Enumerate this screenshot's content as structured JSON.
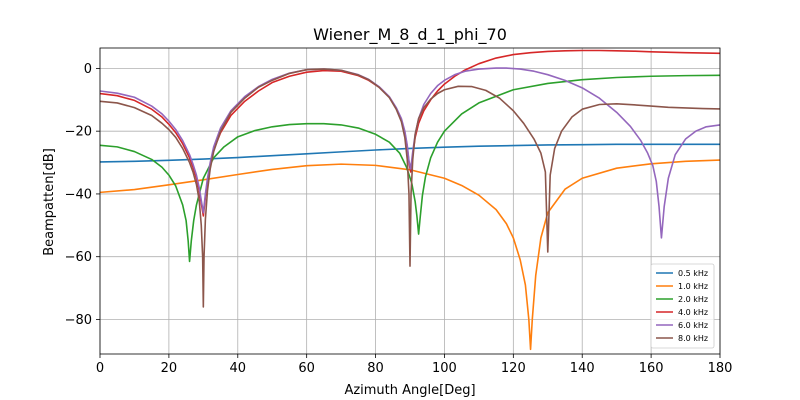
{
  "chart_data": {
    "type": "line",
    "title": "Wiener_M_8_d_1_phi_70",
    "xlabel": "Azimuth Angle[Deg]",
    "ylabel": "Beampatten[dB]",
    "xlim": [
      0,
      180
    ],
    "ylim": [
      -91,
      6.5
    ],
    "xticks": [
      0,
      20,
      40,
      60,
      80,
      100,
      120,
      140,
      160,
      180
    ],
    "yticks": [
      0,
      -20,
      -40,
      -60,
      -80
    ],
    "grid": true,
    "legend_position": "lower-right",
    "series": [
      {
        "name": "0.5 kHz",
        "color": "#1f77b4",
        "x": [
          0,
          10,
          20,
          30,
          40,
          50,
          60,
          70,
          80,
          90,
          100,
          110,
          120,
          130,
          140,
          150,
          160,
          170,
          180
        ],
        "y": [
          -29.8,
          -29.6,
          -29.3,
          -28.9,
          -28.4,
          -27.8,
          -27.2,
          -26.6,
          -26.0,
          -25.5,
          -25.1,
          -24.8,
          -24.6,
          -24.4,
          -24.3,
          -24.2,
          -24.2,
          -24.2,
          -24.2
        ]
      },
      {
        "name": "1.0 kHz",
        "color": "#ff7f0e",
        "x": [
          0,
          10,
          20,
          30,
          40,
          50,
          60,
          70,
          80,
          90,
          100,
          105,
          110,
          115,
          118,
          120,
          122,
          123.5,
          124.5,
          125,
          125.5,
          126.5,
          128,
          130,
          135,
          140,
          150,
          160,
          170,
          180
        ],
        "y": [
          -39.5,
          -38.6,
          -37.1,
          -35.5,
          -33.8,
          -32.2,
          -31.0,
          -30.5,
          -30.9,
          -32.3,
          -35.0,
          -37.3,
          -40.4,
          -45.0,
          -49.5,
          -54.0,
          -61.0,
          -69.0,
          -80.0,
          -89.5,
          -80.0,
          -66.0,
          -54.0,
          -46.0,
          -38.5,
          -35.0,
          -31.8,
          -30.4,
          -29.6,
          -29.2
        ]
      },
      {
        "name": "2.0 kHz",
        "color": "#2ca02c",
        "x": [
          0,
          5,
          10,
          15,
          18,
          20,
          22,
          24,
          25,
          25.6,
          26,
          26.5,
          27.2,
          28,
          30,
          33,
          36,
          40,
          45,
          50,
          55,
          60,
          65,
          70,
          75,
          80,
          84,
          87,
          89,
          90.5,
          91.5,
          92,
          92.5,
          93,
          93.6,
          94.5,
          96,
          98,
          100,
          105,
          110,
          120,
          130,
          140,
          150,
          160,
          170,
          180
        ],
        "y": [
          -24.5,
          -25.0,
          -26.5,
          -29.0,
          -31.5,
          -34.0,
          -37.5,
          -43.5,
          -48.5,
          -55.0,
          -61.5,
          -55.0,
          -48.5,
          -43.5,
          -35.0,
          -28.5,
          -25.0,
          -21.8,
          -19.8,
          -18.6,
          -17.9,
          -17.6,
          -17.6,
          -18.0,
          -19.0,
          -21.0,
          -23.5,
          -27.0,
          -31.5,
          -36.5,
          -42.5,
          -47.0,
          -52.8,
          -47.0,
          -40.5,
          -34.5,
          -28.5,
          -23.5,
          -20.0,
          -14.5,
          -11.0,
          -6.8,
          -4.8,
          -3.6,
          -2.9,
          -2.5,
          -2.3,
          -2.2
        ]
      },
      {
        "name": "4.0 kHz",
        "color": "#d62728",
        "x": [
          0,
          5,
          10,
          15,
          18,
          20,
          22,
          24,
          26,
          27,
          28,
          28.8,
          29.4,
          30,
          30.6,
          31.2,
          32,
          33,
          35,
          38,
          42,
          46,
          50,
          55,
          60,
          65,
          70,
          75,
          78,
          81,
          84,
          86,
          87.5,
          88.5,
          89.2,
          89.7,
          90.2,
          90.8,
          91.5,
          92.5,
          94,
          96,
          98,
          100,
          103,
          106,
          110,
          115,
          120,
          125,
          130,
          135,
          140,
          145,
          150,
          155,
          160,
          170,
          180
        ],
        "y": [
          -8.0,
          -8.7,
          -10.2,
          -13.0,
          -15.5,
          -17.8,
          -20.5,
          -24.0,
          -28.5,
          -31.5,
          -35.0,
          -39.0,
          -43.0,
          -47.0,
          -41.0,
          -36.0,
          -31.0,
          -26.0,
          -20.5,
          -15.0,
          -10.5,
          -7.2,
          -4.5,
          -2.5,
          -1.2,
          -0.7,
          -0.9,
          -2.3,
          -3.8,
          -6.0,
          -9.2,
          -12.8,
          -16.5,
          -20.5,
          -25.0,
          -30.0,
          -33.0,
          -27.5,
          -22.0,
          -17.5,
          -13.5,
          -10.0,
          -7.2,
          -5.0,
          -2.5,
          -0.5,
          1.5,
          3.3,
          4.4,
          5.0,
          5.4,
          5.6,
          5.7,
          5.7,
          5.6,
          5.5,
          5.3,
          5.0,
          4.8
        ]
      },
      {
        "name": "6.0 kHz",
        "color": "#9467bd",
        "x": [
          0,
          5,
          10,
          15,
          18,
          20,
          22,
          24,
          26,
          27,
          28,
          28.8,
          29.4,
          30,
          30.6,
          31.2,
          32,
          33,
          35,
          38,
          42,
          46,
          50,
          55,
          60,
          65,
          70,
          75,
          78,
          81,
          84,
          86,
          87.5,
          88.5,
          89.2,
          89.7,
          90.2,
          90.8,
          91.5,
          92.5,
          94,
          96,
          98,
          100,
          103,
          106,
          110,
          115,
          118,
          122,
          126,
          130,
          135,
          140,
          145,
          150,
          154,
          157,
          159,
          160.5,
          161.5,
          162.3,
          163,
          163.8,
          165,
          167,
          170,
          173,
          176,
          180
        ],
        "y": [
          -7.2,
          -7.9,
          -9.2,
          -12.0,
          -14.5,
          -16.8,
          -19.5,
          -23.0,
          -27.5,
          -30.5,
          -34.0,
          -38.0,
          -42.0,
          -46.0,
          -40.0,
          -35.0,
          -30.0,
          -25.0,
          -19.0,
          -13.5,
          -9.0,
          -5.8,
          -3.5,
          -1.5,
          -0.4,
          -0.2,
          -0.6,
          -2.0,
          -3.5,
          -5.8,
          -9.0,
          -12.5,
          -16.0,
          -20.0,
          -24.5,
          -29.5,
          -32.0,
          -26.5,
          -21.0,
          -16.0,
          -11.5,
          -8.0,
          -5.5,
          -3.8,
          -2.0,
          -0.9,
          -0.2,
          0.1,
          0.1,
          -0.2,
          -0.9,
          -2.0,
          -3.8,
          -6.2,
          -9.5,
          -14.0,
          -18.5,
          -23.0,
          -27.0,
          -31.0,
          -36.0,
          -44.0,
          -54.0,
          -44.0,
          -35.0,
          -27.5,
          -22.5,
          -20.0,
          -18.6,
          -18.0
        ]
      },
      {
        "name": "8.0 kHz",
        "color": "#8c564b",
        "x": [
          0,
          5,
          10,
          15,
          18,
          20,
          22,
          24,
          26,
          27,
          28,
          28.8,
          29.4,
          29.8,
          30,
          30.2,
          30.6,
          31.2,
          32,
          33,
          35,
          38,
          42,
          46,
          50,
          55,
          60,
          65,
          70,
          75,
          78,
          81,
          84,
          86,
          87.5,
          88.5,
          89.2,
          89.7,
          90,
          90.3,
          90.8,
          91.5,
          92.5,
          94,
          96,
          98,
          100,
          104,
          108,
          112,
          116,
          120,
          123,
          126,
          128,
          129.3,
          130,
          130.7,
          132,
          134,
          137,
          140,
          145,
          150,
          155,
          160,
          165,
          170,
          175,
          180
        ],
        "y": [
          -10.5,
          -11.0,
          -12.5,
          -15.0,
          -17.5,
          -19.5,
          -22.0,
          -25.5,
          -30.0,
          -33.0,
          -37.0,
          -42.0,
          -50.0,
          -60.0,
          -76.0,
          -60.0,
          -48.0,
          -39.0,
          -32.0,
          -26.5,
          -20.0,
          -14.0,
          -9.5,
          -6.0,
          -3.8,
          -1.6,
          -0.4,
          -0.2,
          -0.6,
          -2.1,
          -3.6,
          -6.0,
          -9.3,
          -13.0,
          -17.0,
          -22.0,
          -29.0,
          -40.0,
          -63.0,
          -40.0,
          -29.0,
          -21.0,
          -16.0,
          -12.5,
          -9.8,
          -8.0,
          -6.8,
          -5.7,
          -5.8,
          -7.0,
          -9.5,
          -13.5,
          -17.5,
          -22.5,
          -27.0,
          -33.0,
          -58.5,
          -34.0,
          -25.5,
          -20.0,
          -15.5,
          -13.0,
          -11.5,
          -11.3,
          -11.6,
          -12.0,
          -12.4,
          -12.6,
          -12.8,
          -12.9
        ]
      }
    ]
  }
}
